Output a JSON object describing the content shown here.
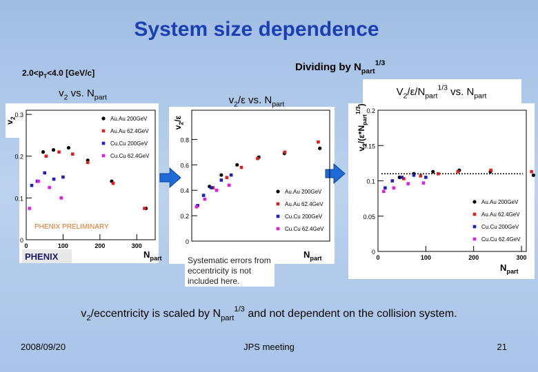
{
  "slide": {
    "title": "System size dependence",
    "pt_range": [
      "2.0<p",
      {
        "sub": "T"
      },
      "<4.0 [GeV/c]"
    ],
    "dividing": [
      "Dividing by N",
      {
        "sub": "part"
      },
      {
        "sup": "1/3"
      }
    ],
    "logo": "PHENIX",
    "note": [
      "Systematic errors from",
      "eccentricity is not",
      "included here."
    ],
    "conclusion": [
      "v",
      {
        "sub": "2"
      },
      "/eccentricity  is scaled by N",
      {
        "sub": "part"
      },
      {
        "sup": "1/3"
      },
      " and not dependent on the collision system."
    ],
    "date": "2008/09/20",
    "meeting": "JPS meeting",
    "page": "21"
  },
  "chart_data": [
    {
      "type": "scatter",
      "title": [
        "v",
        {
          "sub": "2"
        },
        " vs. N",
        {
          "sub": "part"
        }
      ],
      "y_label": [
        "v",
        {
          "sub": "2"
        }
      ],
      "x_label": [
        "N",
        {
          "sub": "part"
        }
      ],
      "annotation": "PHENIX PRELIMINARY",
      "xlim": [
        0,
        350
      ],
      "xticks": [
        0,
        100,
        200,
        300
      ],
      "ylim": [
        0,
        0.31
      ],
      "yticks": [
        0,
        0.1,
        0.2,
        0.3
      ],
      "legend": "upper right",
      "series": [
        {
          "name": "Au.Au 200GeV",
          "color": "#000000",
          "marker": "circle",
          "x": [
            325,
            232,
            167,
            115,
            74,
            46
          ],
          "values": [
            0.075,
            0.14,
            0.19,
            0.22,
            0.215,
            0.21
          ]
        },
        {
          "name": "Au.Au 62.4GeV",
          "color": "#e02020",
          "marker": "square",
          "x": [
            321,
            236,
            167,
            126,
            89,
            54
          ],
          "values": [
            0.075,
            0.135,
            0.185,
            0.205,
            0.21,
            0.2
          ]
        },
        {
          "name": "Cu.Cu 200GeV",
          "color": "#2020c0",
          "marker": "square",
          "x": [
            100,
            75,
            50,
            30,
            15
          ],
          "values": [
            0.15,
            0.145,
            0.16,
            0.14,
            0.13
          ]
        },
        {
          "name": "Cu.Cu 62.4GeV",
          "color": "#e020e0",
          "marker": "square",
          "x": [
            95,
            63,
            33,
            9
          ],
          "values": [
            0.1,
            0.125,
            0.14,
            0.075
          ]
        }
      ]
    },
    {
      "type": "scatter",
      "title": [
        "v",
        {
          "sub": "2"
        },
        "/ε vs. N",
        {
          "sub": "part"
        }
      ],
      "y_label": [
        "v",
        {
          "sub": "2"
        },
        "/ε"
      ],
      "x_label": [
        "N",
        {
          "sub": "part"
        }
      ],
      "xlim": [
        0,
        350
      ],
      "ylim": [
        0,
        1.03
      ],
      "yticks": [
        0,
        0.2,
        0.4,
        0.6,
        0.8
      ],
      "legend": "lower right",
      "series": [
        {
          "name": "Au.Au 200GeV",
          "color": "#000000",
          "marker": "circle",
          "x": [
            325,
            235,
            170,
            115,
            75,
            45
          ],
          "values": [
            0.73,
            0.69,
            0.66,
            0.6,
            0.52,
            0.43
          ]
        },
        {
          "name": "Au.Au 62.4GeV",
          "color": "#e02020",
          "marker": "square",
          "x": [
            321,
            236,
            167,
            126,
            89,
            54
          ],
          "values": [
            0.78,
            0.7,
            0.65,
            0.58,
            0.5,
            0.42
          ]
        },
        {
          "name": "Cu.Cu 200GeV",
          "color": "#2020c0",
          "marker": "square",
          "x": [
            100,
            75,
            50,
            30,
            15
          ],
          "values": [
            0.52,
            0.48,
            0.42,
            0.36,
            0.28
          ]
        },
        {
          "name": "Cu.Cu 62.4GeV",
          "color": "#e020e0",
          "marker": "square",
          "x": [
            95,
            63,
            33,
            12
          ],
          "values": [
            0.44,
            0.4,
            0.33,
            0.27
          ]
        }
      ]
    },
    {
      "type": "scatter",
      "title": [
        "V",
        {
          "sub": "2"
        },
        "/ε/N",
        {
          "sub": "part"
        },
        {
          "sup": "1/3"
        },
        " vs. N",
        {
          "sub": "part"
        }
      ],
      "y_label": [
        "v",
        {
          "sub": "2"
        },
        "/(ε*N",
        {
          "sub": "part"
        },
        {
          "sup": "1/3"
        },
        ")"
      ],
      "x_label": [
        "N",
        {
          "sub": "part"
        }
      ],
      "xlim": [
        0,
        310
      ],
      "xticks": [
        0,
        100,
        200,
        300
      ],
      "ylim": [
        0,
        0.2
      ],
      "yticks": [
        0,
        0.05,
        0.1,
        0.15,
        0.2
      ],
      "reference_line": 0.11,
      "legend": "lower right",
      "series": [
        {
          "name": "Au.Au 200GeV",
          "color": "#000000",
          "marker": "circle",
          "x": [
            325,
            235,
            170,
            115,
            75,
            45
          ],
          "values": [
            0.108,
            0.113,
            0.115,
            0.113,
            0.11,
            0.105
          ]
        },
        {
          "name": "Au.Au 62.4GeV",
          "color": "#e02020",
          "marker": "square",
          "x": [
            321,
            236,
            167,
            126,
            89,
            54
          ],
          "values": [
            0.113,
            0.115,
            0.113,
            0.11,
            0.107,
            0.103
          ]
        },
        {
          "name": "Cu.Cu 200GeV",
          "color": "#2020c0",
          "marker": "square",
          "x": [
            100,
            75,
            50,
            30,
            15
          ],
          "values": [
            0.105,
            0.108,
            0.105,
            0.1,
            0.09
          ]
        },
        {
          "name": "Cu.Cu 62.4GeV",
          "color": "#e020e0",
          "marker": "square",
          "x": [
            95,
            63,
            33,
            12
          ],
          "values": [
            0.097,
            0.096,
            0.09,
            0.085
          ]
        }
      ]
    }
  ]
}
